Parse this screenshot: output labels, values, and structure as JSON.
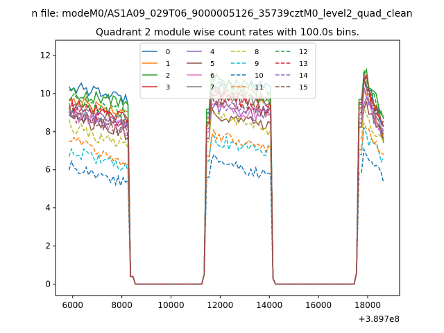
{
  "chart_data": {
    "type": "line",
    "suptitle": "n file: modeM0/AS1A09_029T06_9000005126_35739cztM0_level2_quad_clean",
    "title": "Quadrant 2 module wise count rates with 100.0s bins.",
    "xlabel": "",
    "ylabel": "",
    "x_offset_label": "+3.897e8",
    "xlim": [
      5300,
      19300
    ],
    "ylim": [
      -0.6,
      12.8
    ],
    "x_ticks": [
      6000,
      8000,
      10000,
      12000,
      14000,
      16000,
      18000
    ],
    "y_ticks": [
      0,
      2,
      4,
      6,
      8,
      10,
      12
    ],
    "grid": false,
    "legend": {
      "placement": "top-center",
      "columns": 4
    },
    "x_gaps": [],
    "gti": [
      [
        5850,
        8250,
        8500
      ],
      [
        11350,
        11600,
        14100,
        14250
      ],
      [
        17550,
        17800,
        18700
      ]
    ],
    "series": [
      {
        "name": "0",
        "color": "#1f77b4",
        "style": "solid",
        "a": 10.4,
        "b": 9.7,
        "c": 10.6,
        "d": 10.3,
        "e": 11.2,
        "f": 8.1,
        "noise": 0.3
      },
      {
        "name": "1",
        "color": "#ff7f0e",
        "style": "solid",
        "a": 9.7,
        "b": 8.9,
        "c": 10.2,
        "d": 9.7,
        "e": 10.8,
        "f": 7.6,
        "noise": 0.35
      },
      {
        "name": "2",
        "color": "#2ca02c",
        "style": "solid",
        "a": 10.1,
        "b": 9.5,
        "c": 10.8,
        "d": 10.0,
        "e": 11.4,
        "f": 8.6,
        "noise": 0.35
      },
      {
        "name": "3",
        "color": "#d62728",
        "style": "solid",
        "a": 9.5,
        "b": 8.7,
        "c": 10.0,
        "d": 9.5,
        "e": 11.2,
        "f": 7.8,
        "noise": 0.35
      },
      {
        "name": "4",
        "color": "#9467bd",
        "style": "solid",
        "a": 9.0,
        "b": 8.3,
        "c": 9.4,
        "d": 8.7,
        "e": 9.9,
        "f": 7.5,
        "noise": 0.35
      },
      {
        "name": "5",
        "color": "#8c564b",
        "style": "solid",
        "a": 8.8,
        "b": 7.8,
        "c": 9.0,
        "d": 8.3,
        "e": 9.7,
        "f": 7.3,
        "noise": 0.4
      },
      {
        "name": "6",
        "color": "#e377c2",
        "style": "solid",
        "a": 8.9,
        "b": 8.1,
        "c": 9.4,
        "d": 8.8,
        "e": 10.0,
        "f": 7.7,
        "noise": 0.35
      },
      {
        "name": "7",
        "color": "#7f7f7f",
        "style": "solid",
        "a": 9.2,
        "b": 8.5,
        "c": 10.3,
        "d": 9.5,
        "e": 10.5,
        "f": 8.0,
        "noise": 0.35
      },
      {
        "name": "8",
        "color": "#bcbd22",
        "style": "dashed",
        "a": 8.3,
        "b": 7.2,
        "c": 8.8,
        "d": 8.0,
        "e": 9.0,
        "f": 7.4,
        "noise": 0.35
      },
      {
        "name": "9",
        "color": "#17becf",
        "style": "dashed",
        "a": 7.0,
        "b": 6.2,
        "c": 7.6,
        "d": 6.9,
        "e": 8.0,
        "f": 6.4,
        "noise": 0.35
      },
      {
        "name": "10",
        "color": "#1f77b4",
        "style": "dashed",
        "a": 6.2,
        "b": 5.3,
        "c": 6.6,
        "d": 5.6,
        "e": 6.9,
        "f": 5.5,
        "noise": 0.3
      },
      {
        "name": "11",
        "color": "#ff7f0e",
        "style": "dashed",
        "a": 7.7,
        "b": 6.3,
        "c": 7.9,
        "d": 7.1,
        "e": 8.3,
        "f": 6.8,
        "noise": 0.3
      },
      {
        "name": "12",
        "color": "#2ca02c",
        "style": "dashed",
        "a": 9.8,
        "b": 8.9,
        "c": 10.5,
        "d": 9.6,
        "e": 11.1,
        "f": 8.4,
        "noise": 0.35
      },
      {
        "name": "13",
        "color": "#d62728",
        "style": "dashed",
        "a": 9.3,
        "b": 8.5,
        "c": 9.9,
        "d": 9.2,
        "e": 10.6,
        "f": 8.1,
        "noise": 0.35
      },
      {
        "name": "14",
        "color": "#9467bd",
        "style": "dashed",
        "a": 9.1,
        "b": 8.2,
        "c": 9.6,
        "d": 8.9,
        "e": 10.2,
        "f": 7.9,
        "noise": 0.35
      },
      {
        "name": "15",
        "color": "#8c564b",
        "style": "dashed",
        "a": 8.9,
        "b": 8.0,
        "c": 9.8,
        "d": 9.0,
        "e": 10.9,
        "f": 8.1,
        "noise": 0.35
      }
    ]
  }
}
